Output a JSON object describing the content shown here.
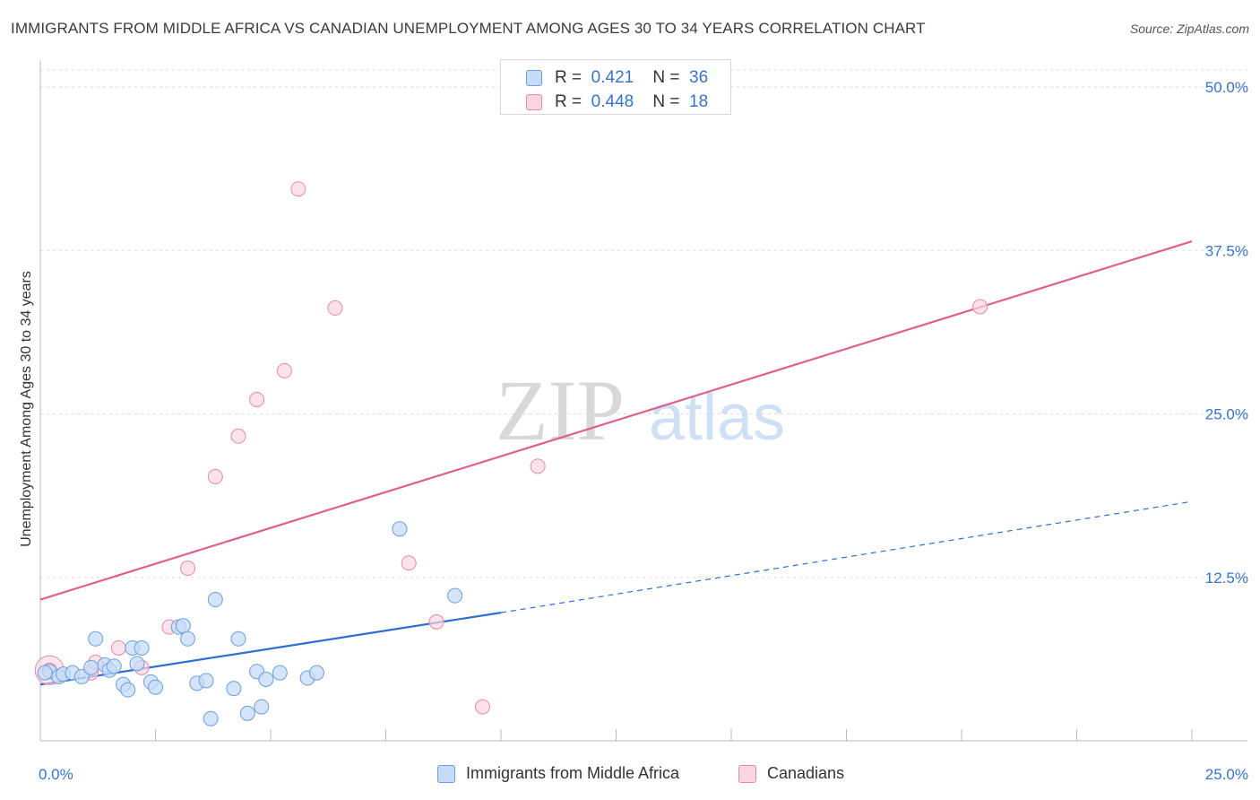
{
  "title": "IMMIGRANTS FROM MIDDLE AFRICA VS CANADIAN UNEMPLOYMENT AMONG AGES 30 TO 34 YEARS CORRELATION CHART",
  "source": "Source: ZipAtlas.com",
  "watermark": {
    "zip": "ZIP",
    "atlas": "atlas"
  },
  "legend_top": {
    "rows": [
      {
        "r_label": "R =",
        "r_value": "0.421",
        "n_label": "N =",
        "n_value": "36",
        "color": "#a8c8f0"
      },
      {
        "r_label": "R =",
        "r_value": "0.448",
        "n_label": "N =",
        "n_value": "18",
        "color": "#f5b5c8"
      }
    ]
  },
  "legend_bottom": [
    {
      "label": "Immigrants from Middle Africa",
      "color": "#a8c8f0"
    },
    {
      "label": "Canadians",
      "color": "#f5b5c8"
    }
  ],
  "colors": {
    "blue_point_fill": "#c5dcf7",
    "blue_point_stroke": "#6c9fdd",
    "blue_line": "#2f6fd0",
    "pink_point_fill": "#fbd5e0",
    "pink_point_stroke": "#e88aa6",
    "pink_line": "#e0608c",
    "axis_label": "#3874c8",
    "grid": "#dddddd"
  },
  "chart_data": {
    "type": "scatter",
    "title": "IMMIGRANTS FROM MIDDLE AFRICA VS CANADIAN UNEMPLOYMENT AMONG AGES 30 TO 34 YEARS CORRELATION CHART",
    "xlabel": "",
    "ylabel": "Unemployment Among Ages 30 to 34 years",
    "xlim": [
      0,
      25
    ],
    "ylim": [
      0,
      50
    ],
    "x_tick_labels": [
      "0.0%",
      "25.0%"
    ],
    "x_ticks": [
      0,
      25
    ],
    "y_tick_labels": [
      "12.5%",
      "25.0%",
      "37.5%",
      "50.0%"
    ],
    "y_ticks": [
      12.5,
      25,
      37.5,
      50
    ],
    "grid": true,
    "series": [
      {
        "name": "Immigrants from Middle Africa",
        "points": [
          [
            0.2,
            5.3
          ],
          [
            0.4,
            4.9
          ],
          [
            0.5,
            5.1
          ],
          [
            0.7,
            5.2
          ],
          [
            0.9,
            4.9
          ],
          [
            1.1,
            5.6
          ],
          [
            1.2,
            7.8
          ],
          [
            1.4,
            5.8
          ],
          [
            1.5,
            5.4
          ],
          [
            1.6,
            5.7
          ],
          [
            1.8,
            4.3
          ],
          [
            1.9,
            3.9
          ],
          [
            2.0,
            7.1
          ],
          [
            2.1,
            5.9
          ],
          [
            2.2,
            7.1
          ],
          [
            2.4,
            4.5
          ],
          [
            2.5,
            4.1
          ],
          [
            3.0,
            8.7
          ],
          [
            3.1,
            8.8
          ],
          [
            3.2,
            7.8
          ],
          [
            3.4,
            4.4
          ],
          [
            3.6,
            4.6
          ],
          [
            3.7,
            1.7
          ],
          [
            3.8,
            10.8
          ],
          [
            4.2,
            4.0
          ],
          [
            4.3,
            7.8
          ],
          [
            4.5,
            2.1
          ],
          [
            4.7,
            5.3
          ],
          [
            4.8,
            2.6
          ],
          [
            4.9,
            4.7
          ],
          [
            5.2,
            5.2
          ],
          [
            5.8,
            4.8
          ],
          [
            6.0,
            5.2
          ],
          [
            7.8,
            16.2
          ],
          [
            9.0,
            11.1
          ],
          [
            0.1,
            5.2
          ]
        ],
        "trend": {
          "x0": 0,
          "y0": 4.3,
          "x1": 10.0,
          "y1": 9.8,
          "dashed_to_x": 25,
          "dashed_to_y": 18.3
        }
      },
      {
        "name": "Canadians",
        "points": [
          [
            0.2,
            5.4
          ],
          [
            1.1,
            5.2
          ],
          [
            1.2,
            6.0
          ],
          [
            1.7,
            7.1
          ],
          [
            2.2,
            5.6
          ],
          [
            2.8,
            8.7
          ],
          [
            3.2,
            13.2
          ],
          [
            3.8,
            20.2
          ],
          [
            4.3,
            23.3
          ],
          [
            4.7,
            26.1
          ],
          [
            5.3,
            28.3
          ],
          [
            5.6,
            42.2
          ],
          [
            6.4,
            33.1
          ],
          [
            8.0,
            13.6
          ],
          [
            8.6,
            9.1
          ],
          [
            9.6,
            2.6
          ],
          [
            10.8,
            21.0
          ],
          [
            20.4,
            33.2
          ]
        ],
        "trend": {
          "x0": 0,
          "y0": 10.8,
          "x1": 25,
          "y1": 38.2
        }
      }
    ]
  }
}
